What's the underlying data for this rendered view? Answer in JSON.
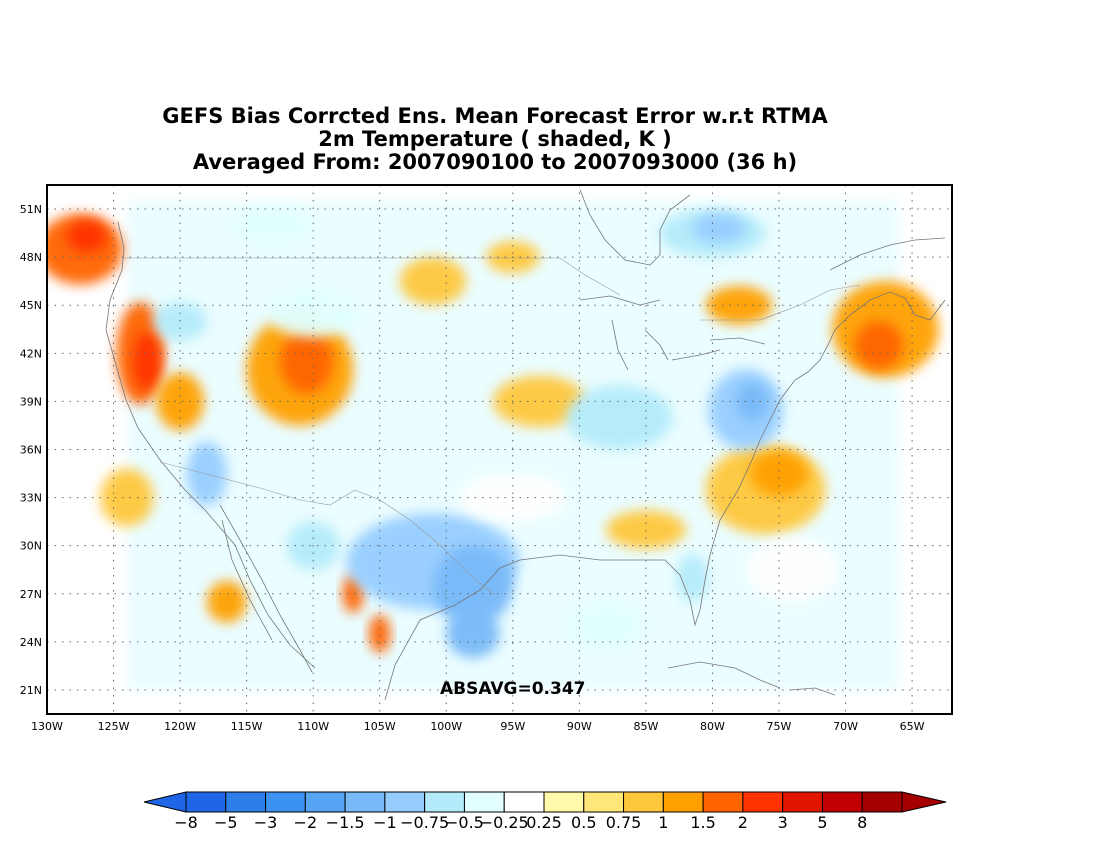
{
  "title": {
    "line1": "GEFS Bias Corrcted Ens. Mean Forecast Error w.r.t RTMA",
    "line2": "2m Temperature ( shaded, K )",
    "line3": "Averaged From: 2007090100 to 2007093000 (36 h)"
  },
  "annotation": "ABSAVG=0.347",
  "map": {
    "region": "CONUS",
    "lon_range": [
      -130,
      -62
    ],
    "lat_range": [
      19.5,
      52.5
    ],
    "grid": true,
    "lat_ticks": [
      {
        "v": 51,
        "label": "51N"
      },
      {
        "v": 48,
        "label": "48N"
      },
      {
        "v": 45,
        "label": "45N"
      },
      {
        "v": 42,
        "label": "42N"
      },
      {
        "v": 39,
        "label": "39N"
      },
      {
        "v": 36,
        "label": "36N"
      },
      {
        "v": 33,
        "label": "33N"
      },
      {
        "v": 30,
        "label": "30N"
      },
      {
        "v": 27,
        "label": "27N"
      },
      {
        "v": 24,
        "label": "24N"
      },
      {
        "v": 21,
        "label": "21N"
      }
    ],
    "lon_ticks": [
      {
        "v": -130,
        "label": "130W"
      },
      {
        "v": -125,
        "label": "125W"
      },
      {
        "v": -120,
        "label": "120W"
      },
      {
        "v": -115,
        "label": "115W"
      },
      {
        "v": -110,
        "label": "110W"
      },
      {
        "v": -105,
        "label": "105W"
      },
      {
        "v": -100,
        "label": "100W"
      },
      {
        "v": -95,
        "label": "95W"
      },
      {
        "v": -90,
        "label": "90W"
      },
      {
        "v": -85,
        "label": "85W"
      },
      {
        "v": -80,
        "label": "80W"
      },
      {
        "v": -75,
        "label": "75W"
      },
      {
        "v": -70,
        "label": "70W"
      },
      {
        "v": -65,
        "label": "65W"
      }
    ],
    "field_blobs": [
      {
        "lon": -127.5,
        "lat": 48.5,
        "rlon": 3.2,
        "rlat": 2.2,
        "value": 1
      },
      {
        "lon": -127.0,
        "lat": 49.3,
        "rlon": 1.5,
        "rlat": 1.0,
        "value": 1.5
      },
      {
        "lon": -123.0,
        "lat": 42.0,
        "rlon": 1.8,
        "rlat": 3.2,
        "value": 1
      },
      {
        "lon": -122.5,
        "lat": 41.5,
        "rlon": 1.0,
        "rlat": 1.8,
        "value": 1.5
      },
      {
        "lon": -120.0,
        "lat": 39.0,
        "rlon": 1.8,
        "rlat": 1.8,
        "value": 0.75
      },
      {
        "lon": -111.0,
        "lat": 41.0,
        "rlon": 4.0,
        "rlat": 3.5,
        "value": 0.75
      },
      {
        "lon": -110.5,
        "lat": 41.5,
        "rlon": 2.0,
        "rlat": 2.0,
        "value": 1
      },
      {
        "lon": -101.0,
        "lat": 46.5,
        "rlon": 2.5,
        "rlat": 1.5,
        "value": 0.5
      },
      {
        "lon": -95.0,
        "lat": 48.0,
        "rlon": 2.0,
        "rlat": 1.0,
        "value": 0.5
      },
      {
        "lon": -93.0,
        "lat": 39.0,
        "rlon": 3.5,
        "rlat": 1.6,
        "value": 0.5
      },
      {
        "lon": -76.0,
        "lat": 33.5,
        "rlon": 4.5,
        "rlat": 2.8,
        "value": 0.5
      },
      {
        "lon": -75.0,
        "lat": 34.5,
        "rlon": 2.2,
        "rlat": 1.4,
        "value": 0.75
      },
      {
        "lon": -67.0,
        "lat": 43.5,
        "rlon": 4.0,
        "rlat": 3.0,
        "value": 0.75
      },
      {
        "lon": -67.5,
        "lat": 42.5,
        "rlon": 1.8,
        "rlat": 1.5,
        "value": 1
      },
      {
        "lon": -78.0,
        "lat": 45.0,
        "rlon": 2.5,
        "rlat": 1.2,
        "value": 0.75
      },
      {
        "lon": -124.0,
        "lat": 33.0,
        "rlon": 2.0,
        "rlat": 1.8,
        "value": 0.5
      },
      {
        "lon": -116.5,
        "lat": 26.5,
        "rlon": 1.5,
        "rlat": 1.3,
        "value": 0.75
      },
      {
        "lon": -107.0,
        "lat": 27.0,
        "rlon": 0.8,
        "rlat": 1.2,
        "value": 1
      },
      {
        "lon": -105.0,
        "lat": 24.5,
        "rlon": 0.8,
        "rlat": 1.2,
        "value": 1
      },
      {
        "lon": -85.0,
        "lat": 31.0,
        "rlon": 3.0,
        "rlat": 1.2,
        "value": 0.5
      },
      {
        "lon": -113.0,
        "lat": 50.0,
        "rlon": 3.0,
        "rlat": 1.3,
        "value": -0.5
      },
      {
        "lon": -110.0,
        "lat": 44.5,
        "rlon": 3.5,
        "rlat": 1.5,
        "value": -0.5
      },
      {
        "lon": -120.0,
        "lat": 44.0,
        "rlon": 2.0,
        "rlat": 1.2,
        "value": -0.75
      },
      {
        "lon": -80.0,
        "lat": 49.5,
        "rlon": 4.0,
        "rlat": 1.5,
        "value": -0.75
      },
      {
        "lon": -79.5,
        "lat": 49.8,
        "rlon": 2.0,
        "rlat": 0.9,
        "value": -1
      },
      {
        "lon": -77.5,
        "lat": 38.5,
        "rlon": 2.8,
        "rlat": 2.5,
        "value": -1
      },
      {
        "lon": -77.0,
        "lat": 39.0,
        "rlon": 1.2,
        "rlat": 1.2,
        "value": -1.5
      },
      {
        "lon": -87.0,
        "lat": 38.0,
        "rlon": 4.0,
        "rlat": 2.0,
        "value": -0.75
      },
      {
        "lon": -101.0,
        "lat": 29.0,
        "rlon": 6.5,
        "rlat": 3.0,
        "value": -1
      },
      {
        "lon": -98.0,
        "lat": 27.5,
        "rlon": 3.0,
        "rlat": 2.5,
        "value": -1.5
      },
      {
        "lon": -98.0,
        "lat": 24.5,
        "rlon": 2.0,
        "rlat": 1.5,
        "value": -1.5
      },
      {
        "lon": -118.0,
        "lat": 34.5,
        "rlon": 1.5,
        "rlat": 2.0,
        "value": -1
      },
      {
        "lon": -110.0,
        "lat": 30.0,
        "rlon": 2.0,
        "rlat": 1.5,
        "value": -0.75
      },
      {
        "lon": -81.5,
        "lat": 28.0,
        "rlon": 1.2,
        "rlat": 1.5,
        "value": -0.75
      },
      {
        "lon": -95.0,
        "lat": 33.0,
        "rlon": 4.0,
        "rlat": 1.5,
        "value": -0.25
      },
      {
        "lon": -74.0,
        "lat": 28.5,
        "rlon": 3.5,
        "rlat": 2.0,
        "value": -0.25
      },
      {
        "lon": -88.0,
        "lat": 25.0,
        "rlon": 3.0,
        "rlat": 1.5,
        "value": -0.5
      }
    ]
  },
  "colorbar": {
    "levels": [
      "-8",
      "-5",
      "-3",
      "-2",
      "-1.5",
      "-1",
      "-0.75",
      "-0.5",
      "-0.25",
      "0.25",
      "0.5",
      "0.75",
      "1",
      "1.5",
      "2",
      "3",
      "5",
      "8"
    ],
    "colors": [
      "#1f66e6",
      "#2d7ee8",
      "#3c92f0",
      "#55a5f4",
      "#78b9f8",
      "#96cdff",
      "#b4ebfa",
      "#e1ffff",
      "#ffffff",
      "#fffaaa",
      "#ffe678",
      "#ffc83c",
      "#ffa000",
      "#ff6400",
      "#ff3200",
      "#e11400",
      "#c00000",
      "#a50000"
    ]
  }
}
